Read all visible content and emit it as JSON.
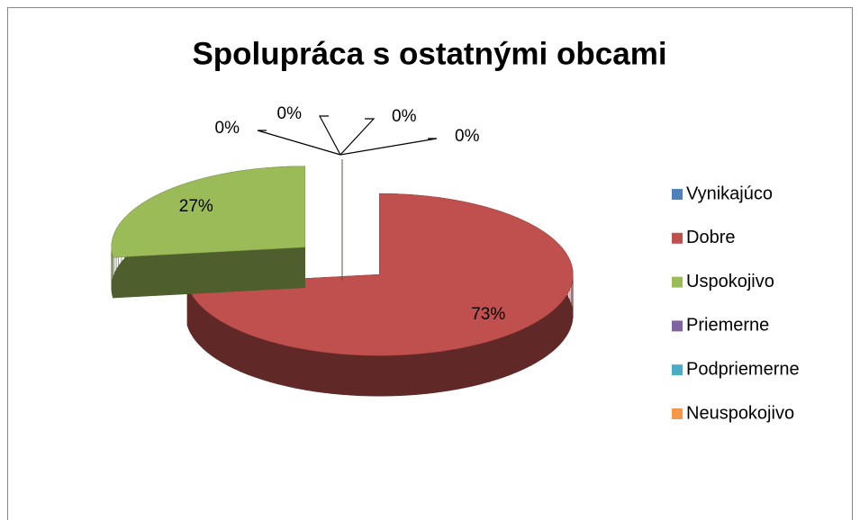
{
  "chart_data": {
    "type": "pie",
    "title": "Spolupráca s ostatnými obcami",
    "categories": [
      "Vynikajúco",
      "Dobre",
      "Uspokojivo",
      "Priemerne",
      "Podpriemerne",
      "Neuspokojivo"
    ],
    "values": [
      0,
      73,
      27,
      0,
      0,
      0
    ],
    "value_labels": [
      "0%",
      "73%",
      "27%",
      "0%",
      "0%",
      "0%"
    ],
    "colors": [
      "#4f81bd",
      "#c0504d",
      "#9bbb59",
      "#8064a2",
      "#4bacc6",
      "#f79646"
    ],
    "legend": "right"
  }
}
